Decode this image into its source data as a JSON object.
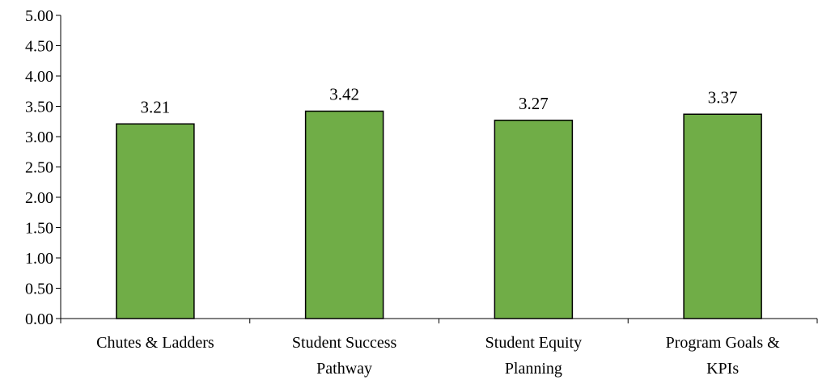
{
  "chart_data": {
    "type": "bar",
    "title": "",
    "xlabel": "",
    "ylabel": "",
    "ylim": [
      0,
      5
    ],
    "y_ticks": [
      "0.00",
      "0.50",
      "1.00",
      "1.50",
      "2.00",
      "2.50",
      "3.00",
      "3.50",
      "4.00",
      "4.50",
      "5.00"
    ],
    "categories": [
      [
        "Chutes & Ladders"
      ],
      [
        "Student Success",
        "Pathway"
      ],
      [
        "Student Equity",
        "Planning"
      ],
      [
        "Program Goals &",
        "KPIs"
      ]
    ],
    "values": [
      3.21,
      3.42,
      3.27,
      3.37
    ],
    "data_labels": [
      "3.21",
      "3.42",
      "3.27",
      "3.37"
    ],
    "bar_color": "#70ad47",
    "bar_outline_color": "#000000",
    "grid": false,
    "legend": "none"
  }
}
